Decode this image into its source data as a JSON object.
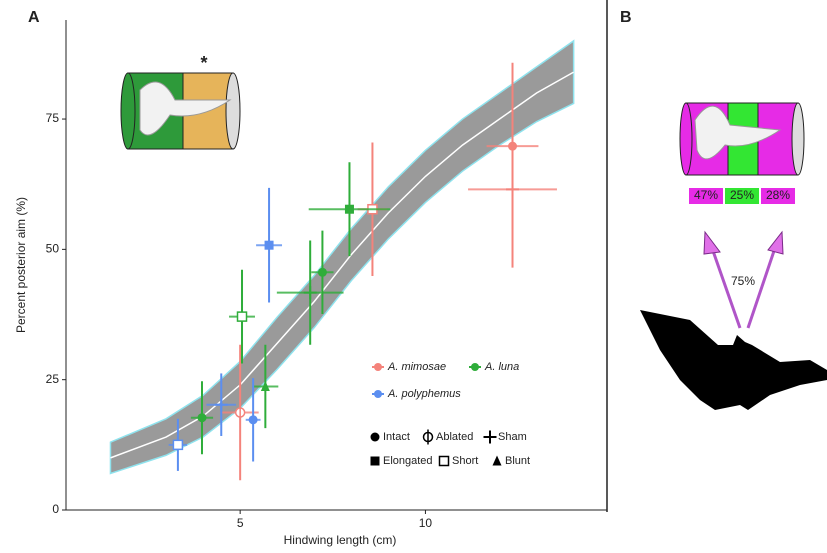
{
  "chart_data": {
    "type": "scatter",
    "panel_label": "A",
    "xlabel": "Hindwing length (cm)",
    "ylabel": "Percent posterior aim (%)",
    "xlim": [
      0.3,
      14.9
    ],
    "ylim": [
      0,
      94
    ],
    "xticks": [
      5,
      10
    ],
    "yticks": [
      0,
      25,
      50,
      75
    ],
    "inset_mark": "*",
    "fit": {
      "color": "#9a9a9a",
      "edge_color": "#8fe3ee",
      "x": [
        1.5,
        3,
        4,
        5,
        6,
        7,
        8,
        9,
        10,
        11,
        12,
        13,
        14
      ],
      "y": [
        10,
        14,
        18,
        24,
        32,
        40,
        49,
        57,
        64,
        70,
        75,
        80,
        84
      ],
      "lower": [
        7,
        10.5,
        14,
        19.5,
        27,
        35,
        44,
        52,
        59,
        65,
        70,
        74.5,
        78
      ],
      "upper": [
        13,
        17.5,
        22,
        28.5,
        37,
        45,
        54,
        62,
        69,
        75,
        80,
        85,
        90
      ]
    },
    "series": [
      {
        "name": "A. mimosae",
        "color": "#f4837b",
        "x": [
          5.0,
          8.57,
          12.35,
          12.35
        ],
        "y": [
          18.7,
          57.7,
          69.8,
          61.5
        ],
        "x_err": [
          0.5,
          0.4,
          0.7,
          1.2
        ],
        "y_err": [
          13,
          12.8,
          16,
          15
        ],
        "markers": [
          "circle-open-bar",
          "square-open",
          "circle",
          "plus"
        ]
      },
      {
        "name": "A. luna",
        "color": "#2fad3a",
        "x": [
          3.97,
          5.68,
          5.05,
          7.22,
          6.89,
          7.95
        ],
        "y": [
          17.7,
          23.7,
          37.1,
          45.6,
          41.7,
          57.7
        ],
        "x_err": [
          0.3,
          0.35,
          0.35,
          0.3,
          0.9,
          1.1
        ],
        "y_err": [
          7,
          8,
          9,
          8,
          10,
          9
        ],
        "markers": [
          "circle",
          "triangle",
          "square-open",
          "circle",
          "plus",
          "square"
        ]
      },
      {
        "name": "A. polyphemus",
        "color": "#5b8ef0",
        "x": [
          3.32,
          4.49,
          5.35,
          5.78
        ],
        "y": [
          12.5,
          20.2,
          17.3,
          50.8
        ],
        "x_err": [
          0.25,
          0.4,
          0.2,
          0.35
        ],
        "y_err": [
          5,
          6,
          8,
          11
        ],
        "markers": [
          "square-open",
          "plus",
          "circle",
          "square"
        ]
      }
    ],
    "treatments": [
      {
        "name": "Intact",
        "marker": "circle"
      },
      {
        "name": "Ablated",
        "marker": "circle-open-bar"
      },
      {
        "name": "Sham",
        "marker": "plus"
      },
      {
        "name": "Elongated",
        "marker": "square"
      },
      {
        "name": "Short",
        "marker": "square-open"
      },
      {
        "name": "Blunt",
        "marker": "triangle"
      }
    ]
  },
  "panel_b": {
    "label": "B",
    "segments": [
      {
        "text": "47%",
        "color": "#e62be6"
      },
      {
        "text": "25%",
        "color": "#33e633"
      },
      {
        "text": "28%",
        "color": "#e62be6"
      }
    ],
    "arrow_label": "75%"
  }
}
